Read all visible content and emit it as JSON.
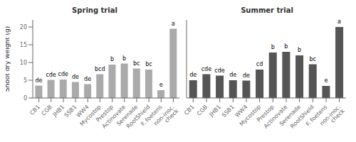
{
  "chart_data": [
    {
      "type": "bar",
      "title": "Spring trial",
      "categories": [
        "CB1",
        "CGB",
        "JHB1",
        "SSB1",
        "WW4",
        "Mycostop",
        "Prestop",
        "Actinovate",
        "Serenade",
        "RootShield",
        "F. foetens",
        "non-inoc.\ncheck"
      ],
      "values": [
        3.5,
        5.1,
        5.2,
        4.5,
        3.9,
        6.7,
        9.4,
        9.7,
        8.3,
        8.0,
        2.2,
        19.5
      ],
      "annotations": [
        "de",
        "cde",
        "cde",
        "de",
        "de",
        "bcd",
        "b",
        "b",
        "bc",
        "bc",
        "e",
        "a"
      ],
      "color": "#aaaaaa",
      "ylabel": "Shoot dry weight (g)",
      "ylim": [
        0,
        22
      ],
      "yticks": [
        0,
        5,
        10,
        15,
        20
      ]
    },
    {
      "type": "bar",
      "title": "Summer trial",
      "categories": [
        "CB1",
        "CGB",
        "JHB1",
        "SSB1",
        "WW4",
        "Mycostop",
        "Prestop",
        "Actinovate",
        "Serenade",
        "RootShield",
        "F. foetens",
        "non-inoc.\ncheck"
      ],
      "values": [
        5.0,
        6.7,
        6.3,
        5.0,
        4.9,
        8.0,
        12.8,
        13.0,
        12.0,
        9.5,
        3.4,
        20.0
      ],
      "annotations": [
        "de",
        "cde",
        "cde",
        "de",
        "de",
        "cd",
        "b",
        "b",
        "b",
        "bc",
        "e",
        "a"
      ],
      "color": "#555555",
      "ylim": [
        0,
        22
      ],
      "yticks": [
        0,
        5,
        10,
        15,
        20
      ],
      "tick_labels": "x"
    }
  ]
}
